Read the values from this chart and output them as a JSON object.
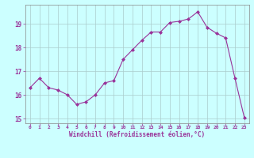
{
  "x": [
    0,
    1,
    2,
    3,
    4,
    5,
    6,
    7,
    8,
    9,
    10,
    11,
    12,
    13,
    14,
    15,
    16,
    17,
    18,
    19,
    20,
    21,
    22,
    23
  ],
  "y": [
    16.3,
    16.7,
    16.3,
    16.2,
    16.0,
    15.6,
    15.7,
    16.0,
    16.5,
    16.6,
    17.5,
    17.9,
    18.3,
    18.65,
    18.65,
    19.05,
    19.1,
    19.2,
    19.5,
    18.85,
    18.6,
    18.4,
    16.7,
    15.05
  ],
  "line_color": "#993399",
  "marker_color": "#993399",
  "bg_color": "#ccffff",
  "grid_color": "#aacccc",
  "xlabel": "Windchill (Refroidissement éolien,°C)",
  "xlabel_color": "#993399",
  "tick_color": "#993399",
  "ylim": [
    14.8,
    19.8
  ],
  "xlim": [
    -0.5,
    23.5
  ],
  "yticks": [
    15,
    16,
    17,
    18,
    19
  ],
  "xticks": [
    0,
    1,
    2,
    3,
    4,
    5,
    6,
    7,
    8,
    9,
    10,
    11,
    12,
    13,
    14,
    15,
    16,
    17,
    18,
    19,
    20,
    21,
    22,
    23
  ],
  "xtick_labels": [
    "0",
    "1",
    "2",
    "3",
    "4",
    "5",
    "6",
    "7",
    "8",
    "9",
    "10",
    "11",
    "12",
    "13",
    "14",
    "15",
    "16",
    "17",
    "18",
    "19",
    "20",
    "21",
    "22",
    "23"
  ]
}
